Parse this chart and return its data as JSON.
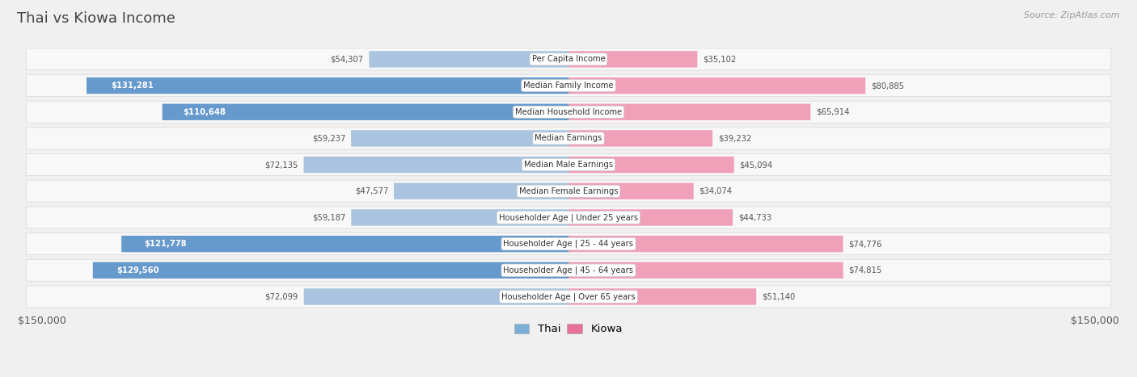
{
  "title": "Thai vs Kiowa Income",
  "source": "Source: ZipAtlas.com",
  "categories": [
    "Per Capita Income",
    "Median Family Income",
    "Median Household Income",
    "Median Earnings",
    "Median Male Earnings",
    "Median Female Earnings",
    "Householder Age | Under 25 years",
    "Householder Age | 25 - 44 years",
    "Householder Age | 45 - 64 years",
    "Householder Age | Over 65 years"
  ],
  "thai_values": [
    54307,
    131281,
    110648,
    59237,
    72135,
    47577,
    59187,
    121778,
    129560,
    72099
  ],
  "kiowa_values": [
    35102,
    80885,
    65914,
    39232,
    45094,
    34074,
    44733,
    74776,
    74815,
    51140
  ],
  "max_value": 150000,
  "thai_color_strong": "#6699cc",
  "thai_color_light": "#aac4e0",
  "kiowa_color_strong": "#dd5577",
  "kiowa_color_light": "#f0a0b8",
  "bg_color": "#f0f0f0",
  "row_bg_color": "#ffffff",
  "label_bg_color": "#ffffff",
  "thai_threshold": 100000,
  "x_axis_label_left": "$150,000",
  "x_axis_label_right": "$150,000",
  "legend_thai_color": "#7ab0d8",
  "legend_kiowa_color": "#e87099"
}
